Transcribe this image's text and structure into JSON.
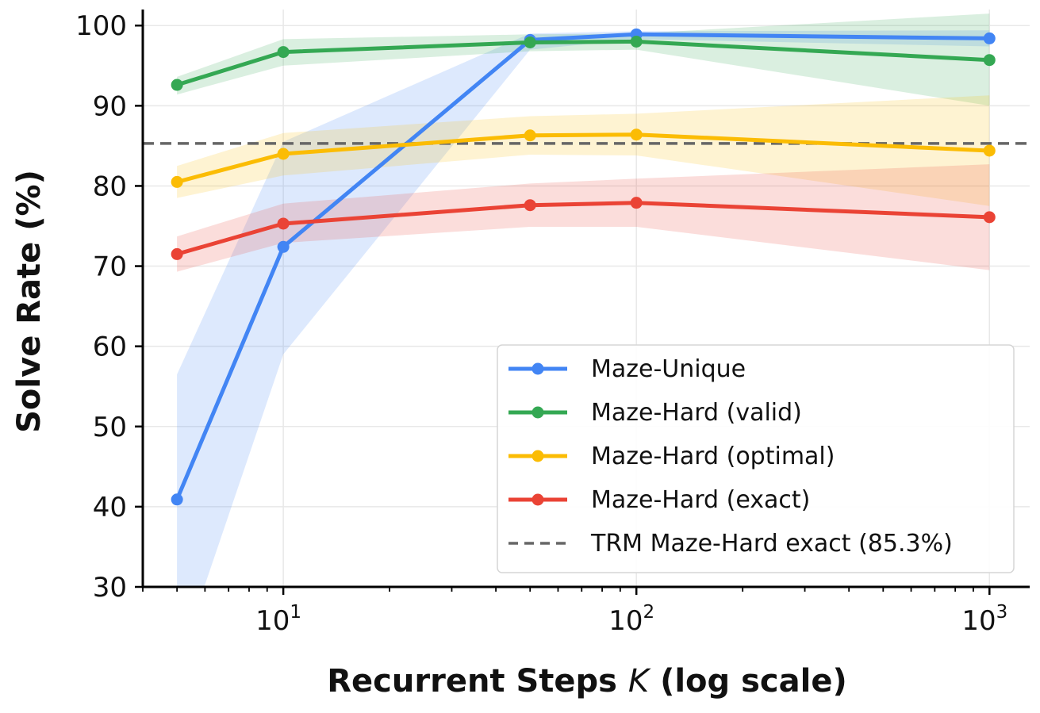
{
  "chart_data": {
    "type": "line",
    "title": "",
    "xlabel_parts": [
      "Recurrent Steps ",
      "K",
      " (log scale)"
    ],
    "ylabel": "Solve Rate (%)",
    "x_scale": "log",
    "xlim": [
      4,
      1300
    ],
    "ylim": [
      30,
      102
    ],
    "grid": true,
    "legend_position": "lower-right",
    "y_ticks": [
      "30",
      "40",
      "50",
      "60",
      "70",
      "80",
      "90",
      "100"
    ],
    "x_ticks": [
      {
        "value": 10,
        "base": "10",
        "exp": "1"
      },
      {
        "value": 100,
        "base": "10",
        "exp": "2"
      },
      {
        "value": 1000,
        "base": "10",
        "exp": "3"
      }
    ],
    "x": [
      5,
      10,
      50,
      100,
      1000
    ],
    "series": [
      {
        "name": "Maze-Unique",
        "color": "#4285F4",
        "values": [
          40.9,
          72.4,
          98.2,
          98.9,
          98.4
        ],
        "band_low": [
          20.0,
          59.0,
          97.0,
          98.3,
          97.4
        ],
        "band_high": [
          56.5,
          85.5,
          99.0,
          99.3,
          99.4
        ]
      },
      {
        "name": "Maze-Hard (valid)",
        "color": "#34A853",
        "values": [
          92.6,
          96.7,
          97.9,
          98.0,
          95.7
        ],
        "band_low": [
          91.4,
          95.0,
          96.8,
          97.0,
          90.0
        ],
        "band_high": [
          93.6,
          98.3,
          98.9,
          99.0,
          101.5
        ]
      },
      {
        "name": "Maze-Hard (optimal)",
        "color": "#FBBC04",
        "values": [
          80.5,
          84.0,
          86.3,
          86.4,
          84.4
        ],
        "band_low": [
          78.5,
          81.3,
          83.9,
          83.8,
          77.5
        ],
        "band_high": [
          82.5,
          86.6,
          88.7,
          89.0,
          91.3
        ]
      },
      {
        "name": "Maze-Hard (exact)",
        "color": "#EA4335",
        "values": [
          71.5,
          75.3,
          77.6,
          77.9,
          76.1
        ],
        "band_low": [
          69.3,
          72.9,
          74.9,
          74.9,
          69.5
        ],
        "band_high": [
          73.7,
          77.8,
          80.3,
          80.9,
          82.7
        ]
      }
    ],
    "reference_line": {
      "name": "TRM Maze-Hard exact (85.3%)",
      "y": 85.3,
      "color": "#666666"
    }
  }
}
